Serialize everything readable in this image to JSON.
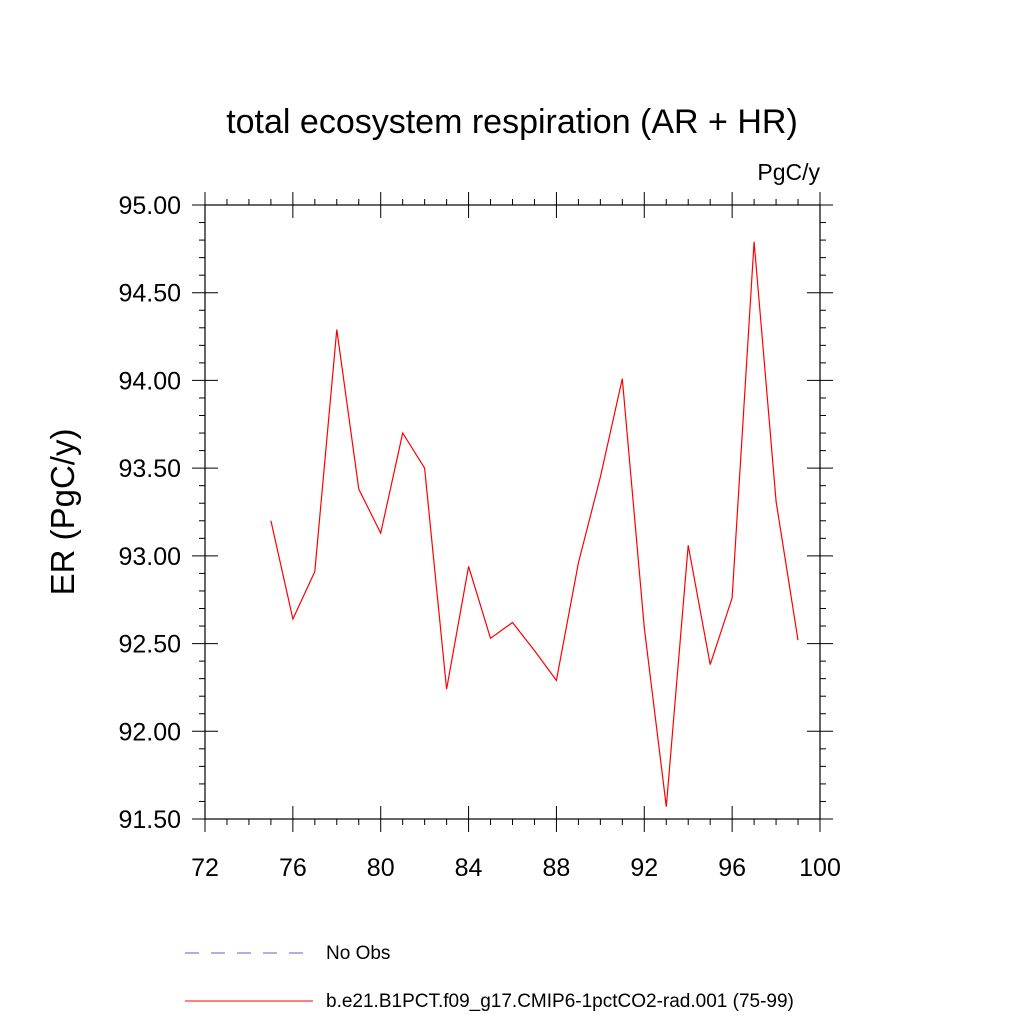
{
  "chart_data": {
    "type": "line",
    "title": "total ecosystem respiration (AR + HR)",
    "units": "PgC/y",
    "ylabel": "ER  (PgC/y)",
    "xlabel": "",
    "xlim": [
      72,
      100
    ],
    "ylim": [
      91.5,
      95.0
    ],
    "x_ticks": [
      72,
      76,
      80,
      84,
      88,
      92,
      96,
      100
    ],
    "x_tick_labels": [
      "72",
      "76",
      "80",
      "84",
      "88",
      "92",
      "96",
      "100"
    ],
    "y_ticks": [
      91.5,
      92.0,
      92.5,
      93.0,
      93.5,
      94.0,
      94.5,
      95.0
    ],
    "y_tick_labels": [
      "91.50",
      "92.00",
      "92.50",
      "93.00",
      "93.50",
      "94.00",
      "94.50",
      "95.00"
    ],
    "grid": false,
    "legend_position": "bottom",
    "series": [
      {
        "name": "b.e21.B1PCT.f09_g17.CMIP6-1pctCO2-rad.001 (75-99)",
        "color": "#ff0000",
        "dash": "solid",
        "x": [
          75,
          76,
          77,
          78,
          79,
          80,
          81,
          82,
          83,
          84,
          85,
          86,
          87,
          88,
          89,
          90,
          91,
          92,
          93,
          94,
          95,
          96,
          97,
          98,
          99
        ],
        "y": [
          93.2,
          92.64,
          92.91,
          94.29,
          93.38,
          93.13,
          93.7,
          93.5,
          92.24,
          92.94,
          92.53,
          92.62,
          92.46,
          92.29,
          92.96,
          93.45,
          94.01,
          92.59,
          91.57,
          93.06,
          92.38,
          92.76,
          94.79,
          93.31,
          92.52
        ]
      },
      {
        "name": "No Obs",
        "color": "#6a5acd",
        "dash": "dashed",
        "x": [],
        "y": []
      }
    ]
  }
}
